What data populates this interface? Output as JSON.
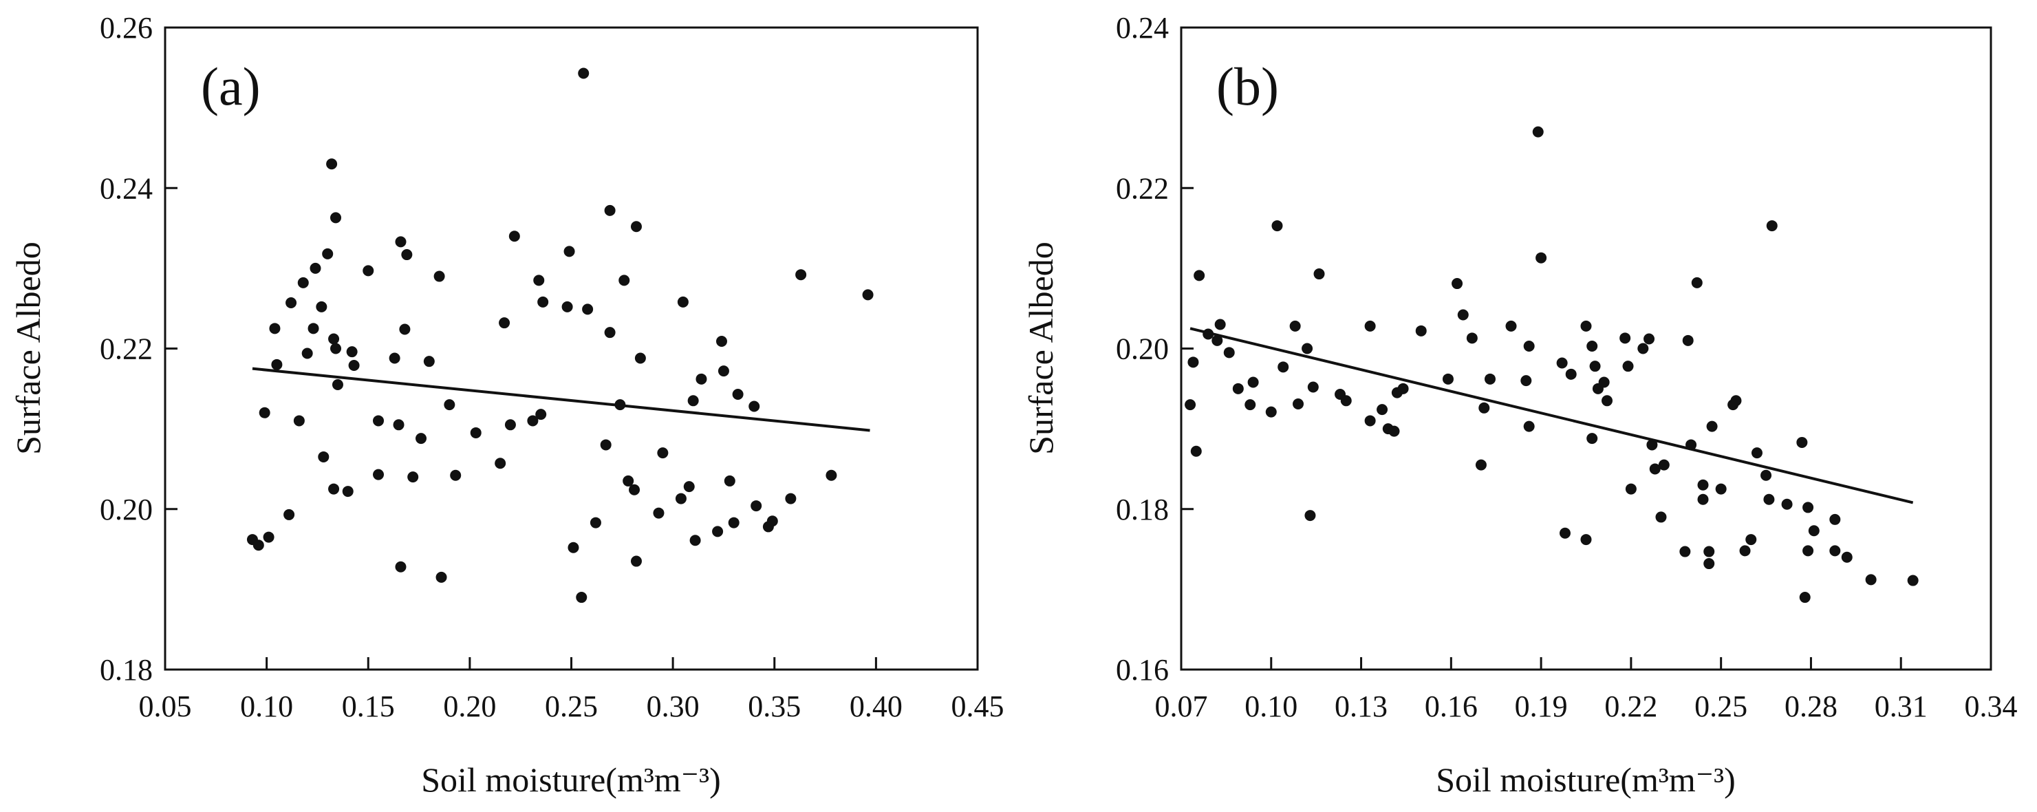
{
  "chart_data": [
    {
      "type": "scatter",
      "panel_label": "(a)",
      "xlabel": "Soil moisture(m³m⁻³)",
      "ylabel": "Surface Albedo",
      "xlim": [
        0.05,
        0.45
      ],
      "ylim": [
        0.18,
        0.26
      ],
      "xticks": [
        "0.05",
        "0.10",
        "0.15",
        "0.20",
        "0.25",
        "0.30",
        "0.35",
        "0.40",
        "0.45"
      ],
      "yticks": [
        "0.18",
        "0.20",
        "0.22",
        "0.24",
        "0.26"
      ],
      "trendline": {
        "x": [
          0.093,
          0.397
        ],
        "y": [
          0.2175,
          0.2098
        ]
      },
      "points": [
        [
          0.093,
          0.1962
        ],
        [
          0.096,
          0.1955
        ],
        [
          0.099,
          0.212
        ],
        [
          0.101,
          0.1965
        ],
        [
          0.104,
          0.2225
        ],
        [
          0.105,
          0.218
        ],
        [
          0.111,
          0.1993
        ],
        [
          0.112,
          0.2257
        ],
        [
          0.116,
          0.211
        ],
        [
          0.118,
          0.2282
        ],
        [
          0.12,
          0.2194
        ],
        [
          0.123,
          0.2225
        ],
        [
          0.124,
          0.23
        ],
        [
          0.127,
          0.2252
        ],
        [
          0.128,
          0.2065
        ],
        [
          0.13,
          0.2318
        ],
        [
          0.132,
          0.243
        ],
        [
          0.133,
          0.2212
        ],
        [
          0.133,
          0.2025
        ],
        [
          0.134,
          0.22
        ],
        [
          0.134,
          0.2363
        ],
        [
          0.135,
          0.2155
        ],
        [
          0.14,
          0.2022
        ],
        [
          0.142,
          0.2196
        ],
        [
          0.143,
          0.2179
        ],
        [
          0.15,
          0.2297
        ],
        [
          0.155,
          0.211
        ],
        [
          0.155,
          0.2043
        ],
        [
          0.163,
          0.2188
        ],
        [
          0.165,
          0.2105
        ],
        [
          0.166,
          0.1928
        ],
        [
          0.166,
          0.2333
        ],
        [
          0.168,
          0.2224
        ],
        [
          0.169,
          0.2317
        ],
        [
          0.172,
          0.204
        ],
        [
          0.176,
          0.2088
        ],
        [
          0.18,
          0.2184
        ],
        [
          0.185,
          0.229
        ],
        [
          0.186,
          0.1915
        ],
        [
          0.19,
          0.213
        ],
        [
          0.193,
          0.2042
        ],
        [
          0.203,
          0.2095
        ],
        [
          0.215,
          0.2057
        ],
        [
          0.217,
          0.2232
        ],
        [
          0.22,
          0.2105
        ],
        [
          0.222,
          0.234
        ],
        [
          0.231,
          0.211
        ],
        [
          0.234,
          0.2285
        ],
        [
          0.235,
          0.2118
        ],
        [
          0.236,
          0.2258
        ],
        [
          0.248,
          0.2252
        ],
        [
          0.249,
          0.2321
        ],
        [
          0.251,
          0.1952
        ],
        [
          0.255,
          0.189
        ],
        [
          0.256,
          0.2543
        ],
        [
          0.258,
          0.2249
        ],
        [
          0.262,
          0.1983
        ],
        [
          0.267,
          0.208
        ],
        [
          0.269,
          0.2372
        ],
        [
          0.269,
          0.222
        ],
        [
          0.274,
          0.213
        ],
        [
          0.276,
          0.2285
        ],
        [
          0.278,
          0.2035
        ],
        [
          0.281,
          0.2024
        ],
        [
          0.282,
          0.2352
        ],
        [
          0.282,
          0.1935
        ],
        [
          0.284,
          0.2188
        ],
        [
          0.293,
          0.1995
        ],
        [
          0.295,
          0.207
        ],
        [
          0.304,
          0.2013
        ],
        [
          0.305,
          0.2258
        ],
        [
          0.308,
          0.2028
        ],
        [
          0.31,
          0.2135
        ],
        [
          0.311,
          0.1961
        ],
        [
          0.314,
          0.2162
        ],
        [
          0.322,
          0.1972
        ],
        [
          0.324,
          0.2209
        ],
        [
          0.325,
          0.2172
        ],
        [
          0.328,
          0.2035
        ],
        [
          0.33,
          0.1983
        ],
        [
          0.332,
          0.2143
        ],
        [
          0.34,
          0.2128
        ],
        [
          0.341,
          0.2004
        ],
        [
          0.347,
          0.1978
        ],
        [
          0.349,
          0.1985
        ],
        [
          0.358,
          0.2013
        ],
        [
          0.363,
          0.2292
        ],
        [
          0.378,
          0.2042
        ],
        [
          0.396,
          0.2267
        ]
      ]
    },
    {
      "type": "scatter",
      "panel_label": "(b)",
      "xlabel": "Soil moisture(m³m⁻³)",
      "ylabel": "Surface Albedo",
      "xlim": [
        0.07,
        0.34
      ],
      "ylim": [
        0.16,
        0.24
      ],
      "xticks": [
        "0.07",
        "0.10",
        "0.13",
        "0.16",
        "0.19",
        "0.22",
        "0.25",
        "0.28",
        "0.31",
        "0.34"
      ],
      "yticks": [
        "0.16",
        "0.18",
        "0.20",
        "0.22",
        "0.24"
      ],
      "trendline": {
        "x": [
          0.073,
          0.314
        ],
        "y": [
          0.2025,
          0.1808
        ]
      },
      "points": [
        [
          0.073,
          0.193
        ],
        [
          0.074,
          0.1983
        ],
        [
          0.075,
          0.1872
        ],
        [
          0.076,
          0.2091
        ],
        [
          0.079,
          0.2018
        ],
        [
          0.082,
          0.201
        ],
        [
          0.083,
          0.203
        ],
        [
          0.086,
          0.1995
        ],
        [
          0.089,
          0.195
        ],
        [
          0.093,
          0.193
        ],
        [
          0.094,
          0.1958
        ],
        [
          0.1,
          0.1921
        ],
        [
          0.102,
          0.2153
        ],
        [
          0.104,
          0.1977
        ],
        [
          0.108,
          0.2028
        ],
        [
          0.109,
          0.1931
        ],
        [
          0.112,
          0.2
        ],
        [
          0.113,
          0.1792
        ],
        [
          0.114,
          0.1952
        ],
        [
          0.116,
          0.2093
        ],
        [
          0.123,
          0.1943
        ],
        [
          0.125,
          0.1935
        ],
        [
          0.133,
          0.191
        ],
        [
          0.133,
          0.2028
        ],
        [
          0.137,
          0.1924
        ],
        [
          0.139,
          0.19
        ],
        [
          0.141,
          0.1897
        ],
        [
          0.142,
          0.1945
        ],
        [
          0.144,
          0.195
        ],
        [
          0.15,
          0.2022
        ],
        [
          0.159,
          0.1962
        ],
        [
          0.162,
          0.2081
        ],
        [
          0.164,
          0.2042
        ],
        [
          0.167,
          0.2013
        ],
        [
          0.17,
          0.1855
        ],
        [
          0.171,
          0.1926
        ],
        [
          0.173,
          0.1962
        ],
        [
          0.18,
          0.2028
        ],
        [
          0.185,
          0.196
        ],
        [
          0.186,
          0.2003
        ],
        [
          0.186,
          0.1903
        ],
        [
          0.189,
          0.227
        ],
        [
          0.19,
          0.2113
        ],
        [
          0.197,
          0.1982
        ],
        [
          0.198,
          0.177
        ],
        [
          0.2,
          0.1968
        ],
        [
          0.205,
          0.2028
        ],
        [
          0.205,
          0.1762
        ],
        [
          0.207,
          0.1888
        ],
        [
          0.207,
          0.2003
        ],
        [
          0.208,
          0.1978
        ],
        [
          0.209,
          0.195
        ],
        [
          0.211,
          0.1958
        ],
        [
          0.212,
          0.1935
        ],
        [
          0.218,
          0.2013
        ],
        [
          0.219,
          0.1978
        ],
        [
          0.22,
          0.1825
        ],
        [
          0.224,
          0.2
        ],
        [
          0.226,
          0.2012
        ],
        [
          0.227,
          0.188
        ],
        [
          0.228,
          0.185
        ],
        [
          0.23,
          0.179
        ],
        [
          0.231,
          0.1855
        ],
        [
          0.238,
          0.1747
        ],
        [
          0.239,
          0.201
        ],
        [
          0.24,
          0.188
        ],
        [
          0.242,
          0.2082
        ],
        [
          0.244,
          0.183
        ],
        [
          0.244,
          0.1812
        ],
        [
          0.246,
          0.1732
        ],
        [
          0.246,
          0.1747
        ],
        [
          0.247,
          0.1903
        ],
        [
          0.25,
          0.1825
        ],
        [
          0.254,
          0.193
        ],
        [
          0.255,
          0.1935
        ],
        [
          0.258,
          0.1748
        ],
        [
          0.26,
          0.1762
        ],
        [
          0.262,
          0.187
        ],
        [
          0.265,
          0.1842
        ],
        [
          0.266,
          0.1812
        ],
        [
          0.267,
          0.2153
        ],
        [
          0.272,
          0.1806
        ],
        [
          0.277,
          0.1883
        ],
        [
          0.278,
          0.169
        ],
        [
          0.279,
          0.1802
        ],
        [
          0.279,
          0.1748
        ],
        [
          0.281,
          0.1773
        ],
        [
          0.288,
          0.1787
        ],
        [
          0.288,
          0.1748
        ],
        [
          0.292,
          0.174
        ],
        [
          0.3,
          0.1712
        ],
        [
          0.314,
          0.1711
        ]
      ]
    }
  ]
}
